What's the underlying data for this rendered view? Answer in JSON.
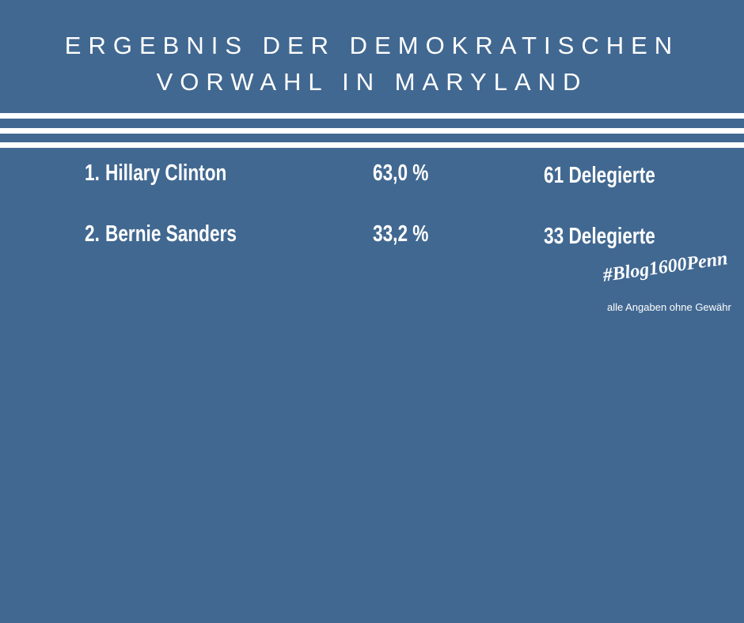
{
  "header": {
    "title_lines": [
      "ERGEBNIS DER DEMOKRATISCHEN",
      "VORWAHL IN MARYLAND"
    ]
  },
  "table": {
    "rows": [
      {
        "rank": "1.",
        "name": "Hillary Clinton",
        "percent": "63,0 %",
        "delegates": "61 Delegierte"
      },
      {
        "rank": "2.",
        "name": "Bernie Sanders",
        "percent": "33,2 %",
        "delegates": "33 Delegierte"
      }
    ]
  },
  "footer": {
    "hashtag": "#Blog1600Penn",
    "disclaimer": "alle Angaben ohne Gewähr"
  }
}
